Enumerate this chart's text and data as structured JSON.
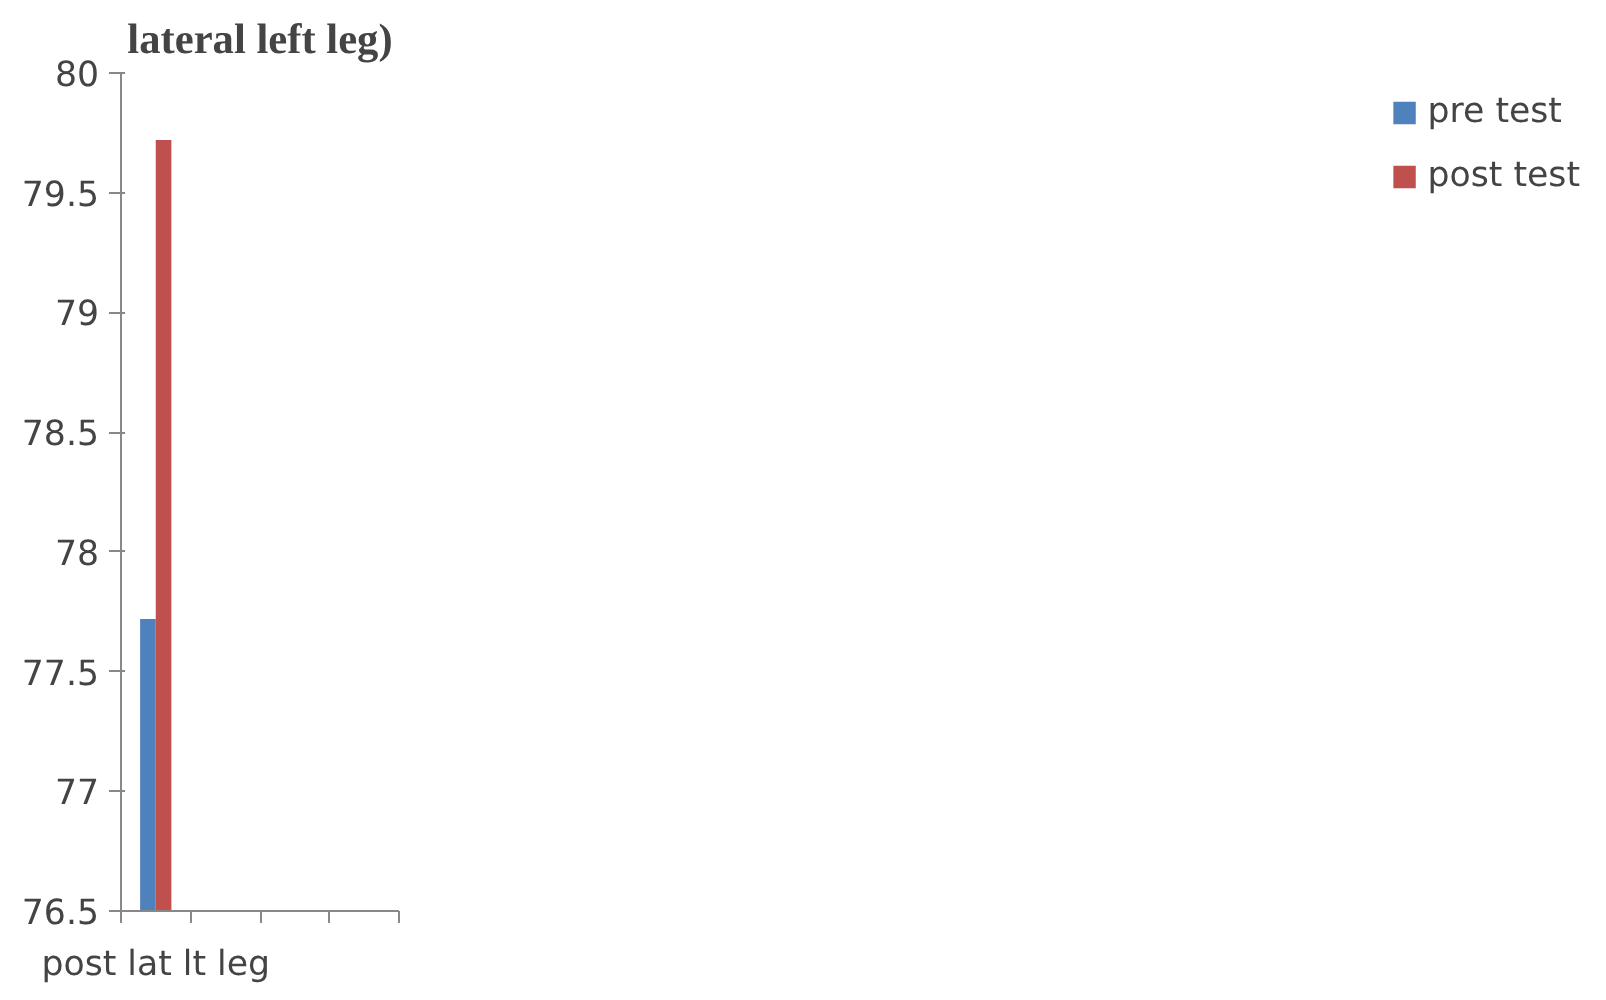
{
  "chart_data": {
    "type": "bar",
    "title": "lateral left leg)",
    "categories": [
      "post lat lt leg",
      null,
      null,
      null
    ],
    "series": [
      {
        "name": "pre test",
        "color": "#4f81bd",
        "values": [
          77.72,
          null,
          null,
          null
        ]
      },
      {
        "name": "post test",
        "color": "#c0504d",
        "values": [
          79.72,
          null,
          null,
          null
        ]
      }
    ],
    "ylim": [
      76.5,
      80
    ],
    "yticks": [
      76.5,
      77,
      77.5,
      78,
      78.5,
      79,
      79.5,
      80
    ],
    "grid": false,
    "legend": "right"
  }
}
